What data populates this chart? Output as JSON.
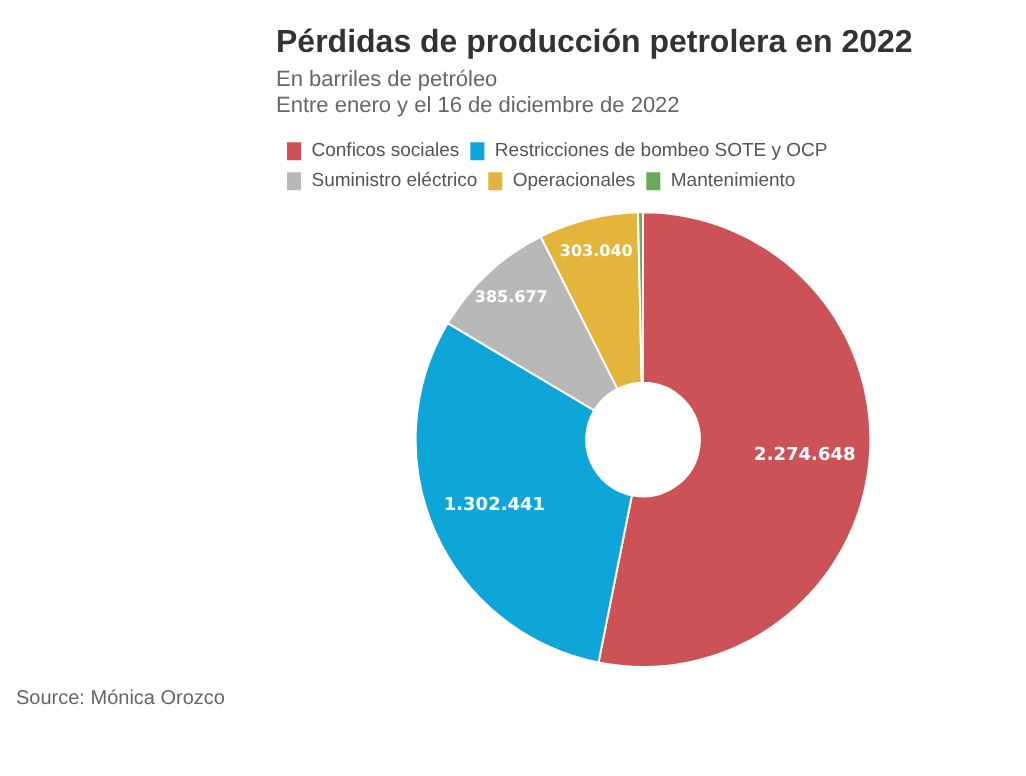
{
  "chart_data": {
    "type": "donut",
    "title": "Pérdidas de producción petrolera en 2022",
    "subtitle": "En barriles de petróleo\nEntre enero y el 16 de diciembre de 2022",
    "categories": [
      "Conficos sociales",
      "Restricciones de bombeo SOTE y OCP",
      "Suministro eléctrico",
      "Operacionales",
      "Mantenimiento"
    ],
    "values": [
      2274648,
      1302441,
      385677,
      303040,
      15000
    ],
    "value_labels": [
      "2.274.648",
      "1.302.441",
      "385.677",
      "303.040",
      null
    ],
    "colors": [
      "#cc5257",
      "#0ea6d8",
      "#b8b8b8",
      "#e3b53b",
      "#6aa85c"
    ],
    "legend": "top",
    "annotations": [
      "Source: Mónica Orozco"
    ]
  }
}
